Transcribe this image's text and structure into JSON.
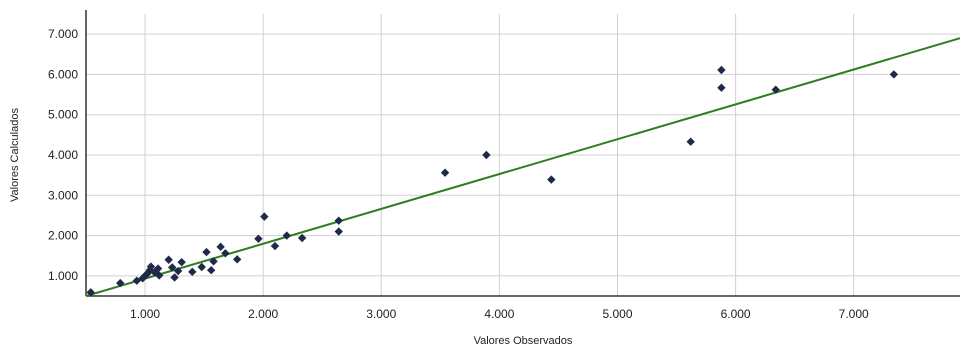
{
  "chart_data": {
    "type": "scatter",
    "xlabel": "Valores Observados",
    "ylabel": "Valores Calculados",
    "x_ticks": [
      "1.000",
      "2.000",
      "3.000",
      "4.000",
      "5.000",
      "6.000",
      "7.000"
    ],
    "y_ticks": [
      "1.000",
      "2.000",
      "3.000",
      "4.000",
      "5.000",
      "6.000",
      "7.000"
    ],
    "xlim": [
      500,
      7900
    ],
    "ylim": [
      500,
      7500
    ],
    "grid": true,
    "colors": {
      "points": "#1f2a4a",
      "trend": "#2e7d1e",
      "grid": "#d0d0d0",
      "axis": "#333333"
    },
    "series": [
      {
        "values": [
          [
            540,
            590
          ],
          [
            790,
            820
          ],
          [
            930,
            880
          ],
          [
            980,
            940
          ],
          [
            1000,
            1000
          ],
          [
            1020,
            1060
          ],
          [
            1040,
            1140
          ],
          [
            1050,
            1230
          ],
          [
            1080,
            1090
          ],
          [
            1110,
            1180
          ],
          [
            1120,
            1010
          ],
          [
            1200,
            1400
          ],
          [
            1230,
            1210
          ],
          [
            1250,
            960
          ],
          [
            1280,
            1120
          ],
          [
            1310,
            1340
          ],
          [
            1400,
            1100
          ],
          [
            1480,
            1220
          ],
          [
            1520,
            1590
          ],
          [
            1560,
            1140
          ],
          [
            1580,
            1360
          ],
          [
            1640,
            1720
          ],
          [
            1680,
            1560
          ],
          [
            1780,
            1410
          ],
          [
            1960,
            1920
          ],
          [
            2010,
            2470
          ],
          [
            2100,
            1740
          ],
          [
            2200,
            2000
          ],
          [
            2330,
            1940
          ],
          [
            2640,
            2370
          ],
          [
            2640,
            2100
          ],
          [
            3540,
            3560
          ],
          [
            3890,
            4000
          ],
          [
            4440,
            3390
          ],
          [
            5620,
            4330
          ],
          [
            5880,
            6110
          ],
          [
            5880,
            5670
          ],
          [
            6340,
            5620
          ],
          [
            7340,
            6000
          ]
        ]
      },
      {
        "type": "line",
        "values": [
          [
            500,
            500
          ],
          [
            7900,
            6900
          ]
        ]
      }
    ]
  }
}
